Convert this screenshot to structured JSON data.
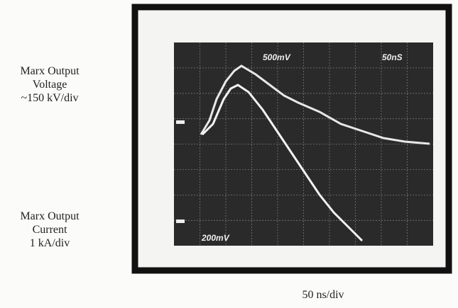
{
  "labels": {
    "voltage": [
      "Marx Output",
      "Voltage",
      "~150 kV/div"
    ],
    "current": [
      "Marx Output",
      "Current",
      "1 kA/div"
    ],
    "time": "50 ns/div"
  },
  "scope": {
    "ch1_scale": "500mV",
    "timebase": "50nS",
    "ch2_scale": "200mV"
  }
}
